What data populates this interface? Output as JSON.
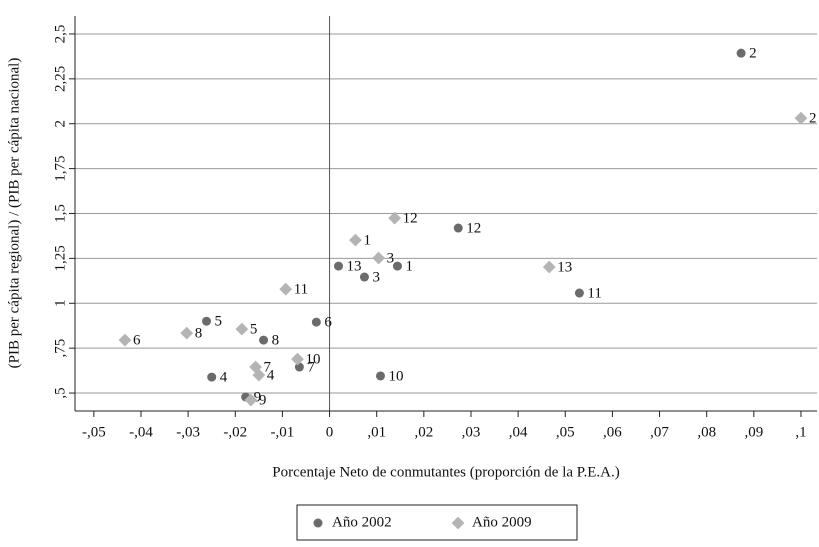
{
  "chart_data": {
    "type": "scatter",
    "xlabel": "Porcentaje Neto de conmutantes (proporción de la P.E.A.)",
    "ylabel": "(PIB per cápita regional) / (PIB per cápita nacional)",
    "xlim": [
      -0.054,
      0.1034
    ],
    "ylim": [
      0.4,
      2.6
    ],
    "xticks": [
      {
        "value": -0.05,
        "label": "-,05"
      },
      {
        "value": -0.04,
        "label": "-,04"
      },
      {
        "value": -0.03,
        "label": "-,03"
      },
      {
        "value": -0.02,
        "label": "-,02"
      },
      {
        "value": -0.01,
        "label": "-,01"
      },
      0,
      {
        "value": 0.01,
        "label": ",01"
      },
      {
        "value": 0.02,
        "label": ",02"
      },
      {
        "value": 0.03,
        "label": ",03"
      },
      {
        "value": 0.04,
        "label": ",04"
      },
      {
        "value": 0.05,
        "label": ",05"
      },
      {
        "value": 0.06,
        "label": ",06"
      },
      {
        "value": 0.07,
        "label": ",07"
      },
      {
        "value": 0.08,
        "label": ",08"
      },
      {
        "value": 0.09,
        "label": ",09"
      },
      {
        "value": 0.1,
        "label": ",1"
      }
    ],
    "yticks": [
      {
        "value": 0.5,
        "label": ",5"
      },
      {
        "value": 0.75,
        "label": ",75"
      },
      1,
      {
        "value": 1.25,
        "label": "1,25"
      },
      {
        "value": 1.5,
        "label": "1,5"
      },
      {
        "value": 1.75,
        "label": "1,75"
      },
      2,
      {
        "value": 2.25,
        "label": "2,25"
      },
      {
        "value": 2.5,
        "label": "2,5"
      }
    ],
    "grid": true,
    "xline": 0,
    "legend": "bottom",
    "series": [
      {
        "name": "Año 2002",
        "marker": "circle",
        "color": "#6b6b6b",
        "labels": [
          "2",
          "12",
          "13",
          "1",
          "3",
          "11",
          "6",
          "5",
          "8",
          "7",
          "4",
          "10",
          "9"
        ],
        "x": [
          0.0873,
          0.0273,
          0.0019,
          0.0144,
          0.0074,
          0.053,
          -0.0028,
          -0.0261,
          -0.014,
          -0.0064,
          -0.025,
          0.0108,
          -0.0178
        ],
        "values": [
          2.393,
          1.419,
          1.207,
          1.207,
          1.146,
          1.057,
          0.895,
          0.9,
          0.795,
          0.645,
          0.589,
          0.595,
          0.478
        ]
      },
      {
        "name": "Año 2009",
        "marker": "diamond",
        "color": "#b4b4b4",
        "labels": [
          "2",
          "12",
          "1",
          "3",
          "13",
          "11",
          "5",
          "8",
          "6",
          "10",
          "7",
          "4",
          "9"
        ],
        "x": [
          0.1,
          0.0138,
          0.0055,
          0.0104,
          0.0466,
          -0.0093,
          -0.0186,
          -0.0303,
          -0.0434,
          -0.0068,
          -0.0157,
          -0.015,
          -0.0167
        ],
        "values": [
          2.031,
          1.474,
          1.352,
          1.252,
          1.202,
          1.079,
          0.856,
          0.834,
          0.795,
          0.689,
          0.645,
          0.6,
          0.461
        ]
      }
    ]
  }
}
